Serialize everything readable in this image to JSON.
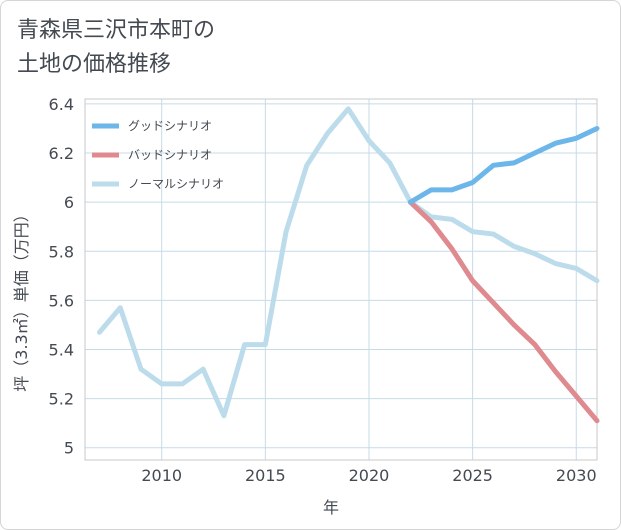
{
  "title_lines": [
    "青森県三沢市本町の",
    "土地の価格推移"
  ],
  "chart_data": {
    "type": "line",
    "title": "青森県三沢市本町の土地の価格推移",
    "xlabel": "年",
    "ylabel": "坪（3.3㎡）単価（万円）",
    "xlim": [
      2006.3,
      2031
    ],
    "ylim": [
      4.95,
      6.42
    ],
    "xticks": [
      2010,
      2015,
      2020,
      2025,
      2030
    ],
    "yticks": [
      5,
      5.2,
      5.4,
      5.6,
      5.8,
      6,
      6.2,
      6.4
    ],
    "ytick_labels": [
      "5",
      "5.2",
      "5.4",
      "5.6",
      "5.8",
      "6",
      "6.2",
      "6.4"
    ],
    "grid": true,
    "legend_position": "top-left",
    "series": [
      {
        "name": "グッドシナリオ",
        "color": "#6cb6ea",
        "x": [
          2022,
          2023,
          2024,
          2025,
          2026,
          2027,
          2028,
          2029,
          2030,
          2031
        ],
        "y": [
          6.0,
          6.05,
          6.05,
          6.08,
          6.15,
          6.16,
          6.2,
          6.24,
          6.26,
          6.3
        ]
      },
      {
        "name": "バッドシナリオ",
        "color": "#de8a8f",
        "x": [
          2022,
          2023,
          2024,
          2025,
          2026,
          2027,
          2028,
          2029,
          2030,
          2031
        ],
        "y": [
          6.0,
          5.92,
          5.81,
          5.68,
          5.59,
          5.5,
          5.42,
          5.31,
          5.21,
          5.11
        ]
      },
      {
        "name": "ノーマルシナリオ",
        "color": "#bcdceb",
        "x": [
          2007,
          2008,
          2009,
          2010,
          2011,
          2012,
          2013,
          2014,
          2015,
          2016,
          2017,
          2018,
          2019,
          2020,
          2021,
          2022,
          2023,
          2024,
          2025,
          2026,
          2027,
          2028,
          2029,
          2030,
          2031
        ],
        "y": [
          5.47,
          5.57,
          5.32,
          5.26,
          5.26,
          5.32,
          5.13,
          5.42,
          5.42,
          5.88,
          6.15,
          6.28,
          6.38,
          6.25,
          6.16,
          6.0,
          5.94,
          5.93,
          5.88,
          5.87,
          5.82,
          5.79,
          5.75,
          5.73,
          5.68
        ]
      }
    ]
  }
}
